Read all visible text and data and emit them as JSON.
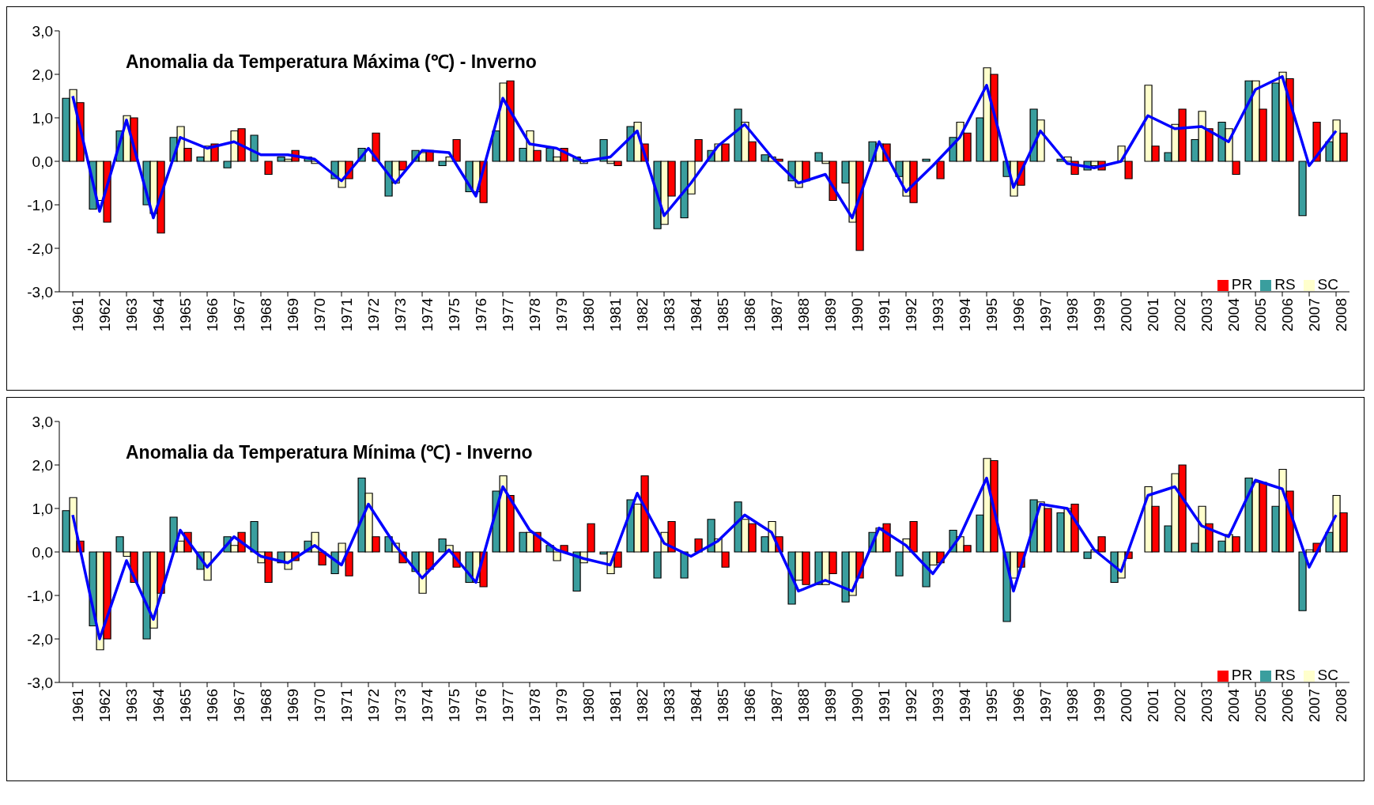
{
  "chart_data": [
    {
      "type": "bar",
      "title": "Anomalia da Temperatura Máxima (℃) - Inverno",
      "categories": [
        "1961",
        "1962",
        "1963",
        "1964",
        "1965",
        "1966",
        "1967",
        "1968",
        "1969",
        "1970",
        "1971",
        "1972",
        "1973",
        "1974",
        "1975",
        "1976",
        "1977",
        "1978",
        "1979",
        "1980",
        "1981",
        "1982",
        "1983",
        "1984",
        "1985",
        "1986",
        "1987",
        "1988",
        "1989",
        "1990",
        "1991",
        "1992",
        "1993",
        "1994",
        "1995",
        "1996",
        "1997",
        "1998",
        "1999",
        "2000",
        "2001",
        "2002",
        "2003",
        "2004",
        "2005",
        "2006",
        "2007",
        "2008"
      ],
      "series": [
        {
          "name": "RS",
          "color": "#3a9e9e",
          "values": [
            1.45,
            -1.1,
            0.7,
            -1.0,
            0.55,
            0.1,
            -0.15,
            0.6,
            0.1,
            0.1,
            -0.4,
            0.3,
            -0.8,
            0.25,
            -0.1,
            -0.7,
            0.7,
            0.3,
            0.3,
            0.1,
            0.5,
            0.8,
            -1.55,
            -1.3,
            0.25,
            1.2,
            0.15,
            -0.45,
            0.2,
            -0.5,
            0.45,
            -0.35,
            0.05,
            0.55,
            1.0,
            -0.35,
            1.2,
            0.05,
            -0.2,
            0.0,
            0.0,
            0.2,
            0.5,
            0.9,
            1.85,
            1.8,
            -1.25,
            0.45
          ]
        },
        {
          "name": "SC",
          "color": "#ffffcc",
          "values": [
            1.65,
            -0.9,
            1.05,
            -1.2,
            0.8,
            0.35,
            0.7,
            0.0,
            0.05,
            -0.05,
            -0.6,
            0.0,
            -0.5,
            0.2,
            0.1,
            -0.7,
            1.8,
            0.7,
            0.1,
            -0.05,
            -0.05,
            0.9,
            -1.45,
            -0.75,
            0.4,
            0.9,
            0.1,
            -0.6,
            -0.05,
            -1.4,
            0.4,
            -0.8,
            0.0,
            0.9,
            2.15,
            -0.8,
            0.95,
            0.1,
            -0.1,
            0.35,
            1.75,
            0.85,
            1.15,
            0.75,
            1.85,
            2.05,
            0.0,
            0.95
          ]
        },
        {
          "name": "PR",
          "color": "#ff0000",
          "values": [
            1.35,
            -1.4,
            1.0,
            -1.65,
            0.3,
            0.4,
            0.75,
            -0.3,
            0.25,
            0.0,
            -0.4,
            0.65,
            -0.2,
            0.25,
            0.5,
            -0.95,
            1.85,
            0.25,
            0.3,
            0.0,
            -0.1,
            0.4,
            -0.8,
            0.5,
            0.4,
            0.45,
            0.05,
            -0.45,
            -0.9,
            -2.05,
            0.4,
            -0.95,
            -0.4,
            0.65,
            2.0,
            -0.55,
            0.0,
            -0.3,
            -0.2,
            -0.4,
            0.35,
            1.2,
            0.75,
            -0.3,
            1.2,
            1.9,
            0.9,
            0.65
          ]
        },
        {
          "type": "line",
          "color": "#0000ff",
          "values": [
            1.5,
            -1.15,
            0.95,
            -1.3,
            0.55,
            0.3,
            0.45,
            0.15,
            0.15,
            0.05,
            -0.45,
            0.3,
            -0.5,
            0.25,
            0.2,
            -0.8,
            1.45,
            0.4,
            0.3,
            0.0,
            0.1,
            0.7,
            -1.25,
            -0.5,
            0.35,
            0.85,
            0.1,
            -0.5,
            -0.3,
            -1.3,
            0.45,
            -0.7,
            -0.1,
            0.55,
            1.75,
            -0.6,
            0.7,
            -0.05,
            -0.15,
            0.0,
            1.05,
            0.75,
            0.8,
            0.45,
            1.65,
            1.95,
            -0.1,
            0.7
          ]
        }
      ],
      "ylim": [
        -3,
        3
      ],
      "yticks": [
        {
          "value": -3,
          "label": "-3,0"
        },
        {
          "value": -2,
          "label": "-2,0"
        },
        {
          "value": -1,
          "label": "-1,0"
        },
        {
          "value": 0,
          "label": "0,0"
        },
        {
          "value": 1,
          "label": "1,0"
        },
        {
          "value": 2,
          "label": "2,0"
        },
        {
          "value": 3,
          "label": "3,0"
        }
      ],
      "legend": "bottom right",
      "marker": "none"
    },
    {
      "type": "bar",
      "title": "Anomalia da Temperatura Mínima (℃) - Inverno",
      "categories": [
        "1961",
        "1962",
        "1963",
        "1964",
        "1965",
        "1966",
        "1967",
        "1968",
        "1969",
        "1970",
        "1971",
        "1972",
        "1973",
        "1974",
        "1975",
        "1976",
        "1977",
        "1978",
        "1979",
        "1980",
        "1981",
        "1982",
        "1983",
        "1984",
        "1985",
        "1986",
        "1987",
        "1988",
        "1989",
        "1990",
        "1991",
        "1992",
        "1993",
        "1994",
        "1995",
        "1996",
        "1997",
        "1998",
        "1999",
        "2000",
        "2001",
        "2002",
        "2003",
        "2004",
        "2005",
        "2006",
        "2007",
        "2008"
      ],
      "series": [
        {
          "name": "RS",
          "color": "#3a9e9e",
          "values": [
            0.95,
            -1.7,
            0.35,
            -2.0,
            0.8,
            -0.4,
            0.35,
            0.7,
            -0.25,
            0.25,
            -0.5,
            1.7,
            0.35,
            -0.45,
            0.3,
            -0.7,
            1.4,
            0.45,
            0.15,
            -0.9,
            -0.05,
            1.2,
            -0.6,
            -0.6,
            0.75,
            1.15,
            0.35,
            -1.2,
            -0.75,
            -1.15,
            0.45,
            -0.55,
            -0.8,
            0.5,
            0.85,
            -1.6,
            1.2,
            0.9,
            -0.15,
            -0.7,
            0.0,
            0.6,
            0.2,
            0.25,
            1.7,
            1.05,
            -1.35,
            0.45
          ]
        },
        {
          "name": "SC",
          "color": "#ffffcc",
          "values": [
            1.25,
            -2.25,
            -0.1,
            -1.75,
            0.25,
            -0.65,
            0.15,
            -0.25,
            -0.4,
            0.45,
            0.2,
            1.35,
            0.2,
            -0.95,
            0.15,
            -0.7,
            1.75,
            0.45,
            -0.2,
            -0.25,
            -0.5,
            1.1,
            0.45,
            0.0,
            0.3,
            0.75,
            0.7,
            -0.65,
            -0.75,
            -1.0,
            0.55,
            0.3,
            -0.3,
            0.35,
            2.15,
            -0.6,
            1.15,
            1.0,
            0.05,
            -0.6,
            1.5,
            1.8,
            1.05,
            0.4,
            1.6,
            1.9,
            0.05,
            1.3
          ]
        },
        {
          "name": "PR",
          "color": "#ff0000",
          "values": [
            0.25,
            -2.0,
            -0.7,
            -0.95,
            0.45,
            0.0,
            0.45,
            -0.7,
            -0.2,
            -0.3,
            -0.55,
            0.35,
            -0.25,
            -0.4,
            -0.35,
            -0.8,
            1.3,
            0.45,
            0.15,
            0.65,
            -0.35,
            1.75,
            0.7,
            0.3,
            -0.35,
            0.65,
            0.35,
            -0.75,
            -0.5,
            -0.6,
            0.65,
            0.7,
            -0.25,
            0.15,
            2.1,
            -0.35,
            1.0,
            1.1,
            0.35,
            -0.15,
            1.05,
            2.0,
            0.65,
            0.35,
            1.6,
            1.4,
            0.2,
            0.9
          ]
        },
        {
          "type": "line",
          "color": "#0000ff",
          "values": [
            0.85,
            -2.0,
            -0.2,
            -1.55,
            0.5,
            -0.35,
            0.35,
            -0.1,
            -0.25,
            0.15,
            -0.3,
            1.1,
            0.15,
            -0.6,
            0.05,
            -0.7,
            1.5,
            0.5,
            0.05,
            -0.15,
            -0.3,
            1.35,
            0.2,
            -0.1,
            0.25,
            0.85,
            0.45,
            -0.9,
            -0.65,
            -0.9,
            0.55,
            0.15,
            -0.5,
            0.35,
            1.7,
            -0.9,
            1.1,
            1.0,
            0.05,
            -0.45,
            1.3,
            1.5,
            0.6,
            0.35,
            1.65,
            1.45,
            -0.35,
            0.85
          ]
        }
      ],
      "ylim": [
        -3,
        3
      ],
      "yticks": [
        {
          "value": -3,
          "label": "-3,0"
        },
        {
          "value": -2,
          "label": "-2,0"
        },
        {
          "value": -1,
          "label": "-1,0"
        },
        {
          "value": 0,
          "label": "0,0"
        },
        {
          "value": 1,
          "label": "1,0"
        },
        {
          "value": 2,
          "label": "2,0"
        },
        {
          "value": 3,
          "label": "3,0"
        }
      ],
      "legend": "bottom right",
      "marker": "none"
    }
  ]
}
